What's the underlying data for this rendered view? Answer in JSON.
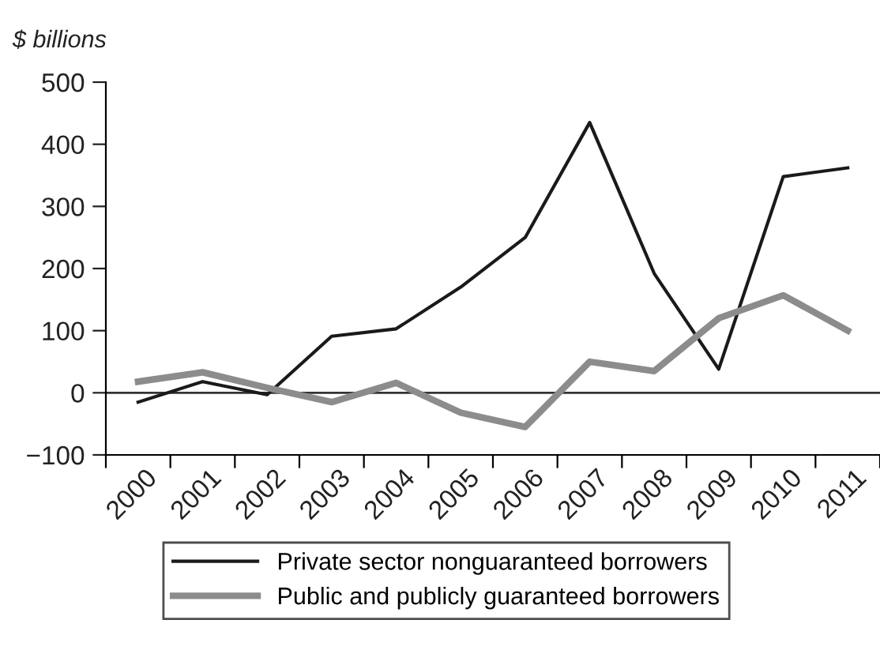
{
  "chart_data": {
    "type": "line",
    "ylabel": "$ billions",
    "categories": [
      "2000",
      "2001",
      "2002",
      "2003",
      "2004",
      "2005",
      "2006",
      "2007",
      "2008",
      "2009",
      "2010",
      "2011"
    ],
    "series": [
      {
        "name": "Private sector nonguaranteed borrowers",
        "color": "#1a1a1a",
        "values": [
          -15,
          18,
          -3,
          91,
          103,
          170,
          250,
          435,
          192,
          38,
          348,
          362
        ]
      },
      {
        "name": "Public and publicly guaranteed borrowers",
        "color": "#8c8c8c",
        "values": [
          18,
          33,
          8,
          -15,
          16,
          -32,
          -55,
          50,
          35,
          120,
          157,
          100
        ]
      }
    ],
    "ylim": [
      -100,
      500
    ],
    "yticks": [
      {
        "value": -100,
        "label": "−100"
      },
      0,
      100,
      200,
      300,
      400,
      500
    ],
    "ref_lines": [
      {
        "axis": "y",
        "value": 0,
        "color": "#333333"
      }
    ],
    "grid": false,
    "legend": "bottom",
    "marker": "none",
    "line_style": "solid"
  }
}
